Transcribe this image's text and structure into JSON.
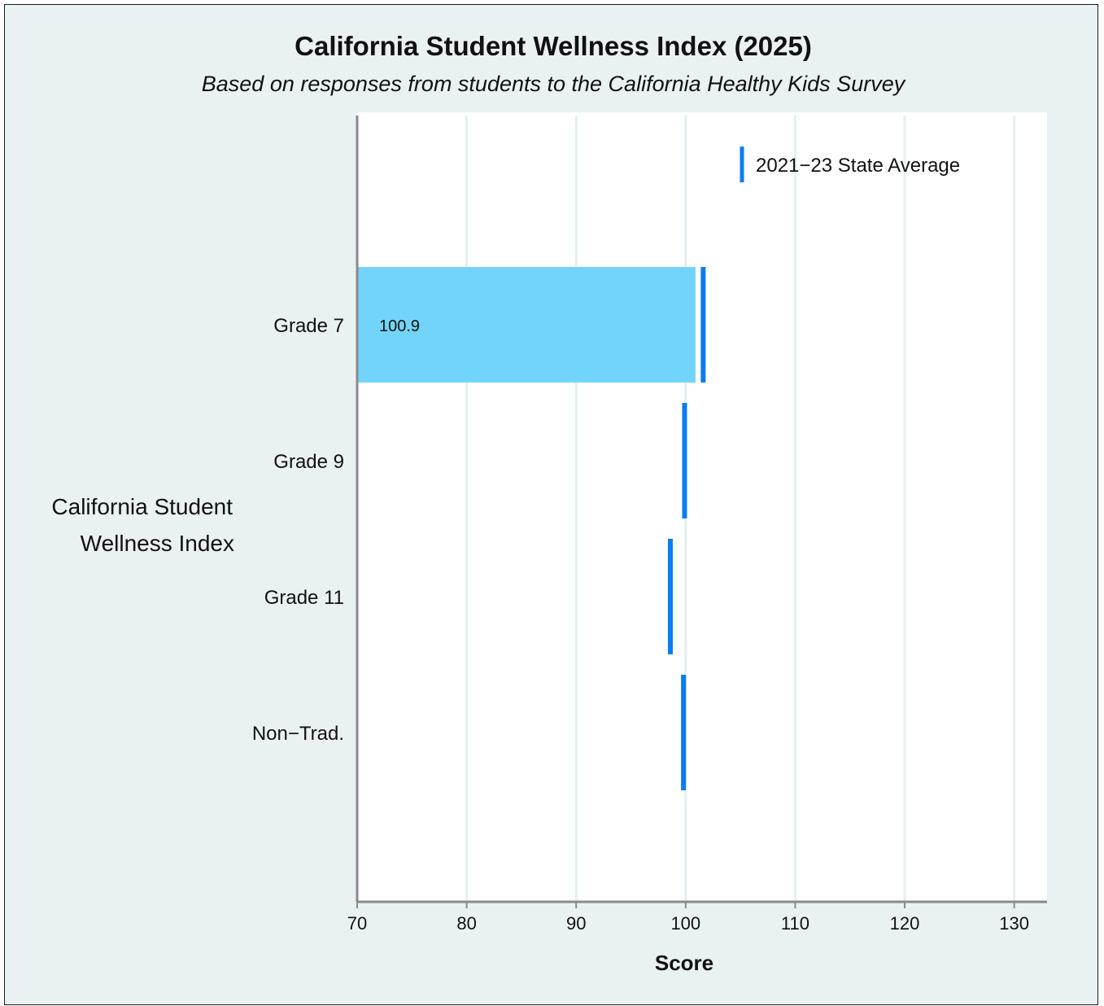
{
  "chart_data": {
    "type": "bar",
    "orientation": "horizontal",
    "title": "California Student Wellness Index (2025)",
    "subtitle": "Based on responses from students to the California Healthy Kids Survey",
    "ylabel_lines": [
      "California Student",
      "Wellness Index"
    ],
    "xlabel": "Score",
    "xlim": [
      70,
      133
    ],
    "xticks": [
      70,
      80,
      90,
      100,
      110,
      120,
      130
    ],
    "grid": true,
    "legend_position": "top-right",
    "categories": [
      "Grade 7",
      "Grade 9",
      "Grade 11",
      "Non−Trad."
    ],
    "series": [
      {
        "values": [
          100.9,
          null,
          null,
          null
        ],
        "data_labels": [
          "100.9",
          "",
          "",
          ""
        ],
        "color": "#72d4fb"
      },
      {
        "name": "2021−23 State Average",
        "marker": "vertical-line",
        "values": [
          101.6,
          99.9,
          98.6,
          99.8
        ],
        "color": "#0a7cf2"
      }
    ]
  }
}
